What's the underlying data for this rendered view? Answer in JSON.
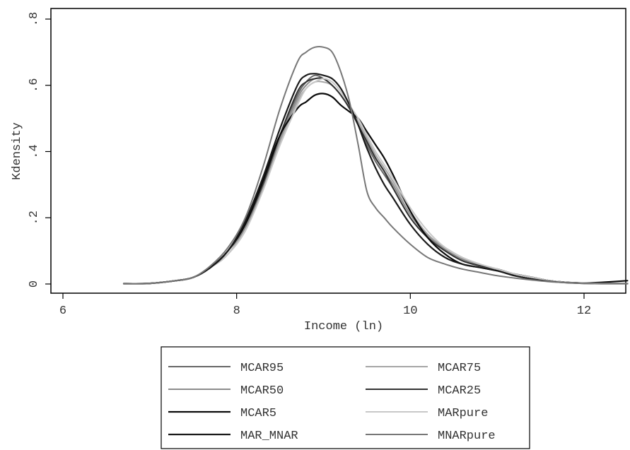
{
  "chart_data": {
    "type": "line",
    "xlabel": "Income (ln)",
    "ylabel": "Kdensity",
    "xlim": [
      6,
      12.5
    ],
    "ylim": [
      0,
      0.8
    ],
    "x_ticks": [
      6,
      8,
      10,
      12
    ],
    "x_tick_labels": [
      "6",
      "8",
      "10",
      "12"
    ],
    "y_ticks": [
      0,
      0.2,
      0.4,
      0.6,
      0.8
    ],
    "y_tick_labels": [
      "0",
      ".2",
      ".4",
      ".6",
      ".8"
    ],
    "grid": false,
    "legend_placement": "bottom",
    "x": [
      6.7,
      7.0,
      7.3,
      7.5,
      7.7,
      7.9,
      8.1,
      8.3,
      8.5,
      8.7,
      8.8,
      8.9,
      9.0,
      9.1,
      9.2,
      9.3,
      9.4,
      9.5,
      9.6,
      9.7,
      9.8,
      10.0,
      10.2,
      10.4,
      10.6,
      10.8,
      11.0,
      11.2,
      11.4,
      11.6,
      11.8,
      12.0,
      12.2,
      12.5
    ],
    "series": [
      {
        "name": "MCAR95",
        "color": "#666666",
        "width": 2,
        "values": [
          0.001,
          0.002,
          0.01,
          0.02,
          0.05,
          0.1,
          0.18,
          0.3,
          0.45,
          0.57,
          0.61,
          0.63,
          0.62,
          0.6,
          0.57,
          0.53,
          0.48,
          0.42,
          0.37,
          0.33,
          0.29,
          0.2,
          0.14,
          0.1,
          0.07,
          0.055,
          0.045,
          0.03,
          0.02,
          0.01,
          0.005,
          0.003,
          0.002,
          0.001
        ]
      },
      {
        "name": "MCAR75",
        "color": "#a6a6a6",
        "width": 2,
        "values": [
          0.001,
          0.002,
          0.01,
          0.02,
          0.05,
          0.09,
          0.17,
          0.29,
          0.43,
          0.55,
          0.59,
          0.61,
          0.61,
          0.6,
          0.57,
          0.53,
          0.49,
          0.44,
          0.39,
          0.35,
          0.31,
          0.22,
          0.15,
          0.11,
          0.08,
          0.06,
          0.045,
          0.03,
          0.02,
          0.01,
          0.005,
          0.003,
          0.002,
          0.001
        ]
      },
      {
        "name": "MCAR50",
        "color": "#8c8c8c",
        "width": 2,
        "values": [
          0.001,
          0.002,
          0.01,
          0.02,
          0.05,
          0.1,
          0.17,
          0.29,
          0.44,
          0.56,
          0.6,
          0.62,
          0.62,
          0.6,
          0.57,
          0.53,
          0.48,
          0.43,
          0.38,
          0.34,
          0.3,
          0.21,
          0.145,
          0.105,
          0.075,
          0.058,
          0.045,
          0.03,
          0.02,
          0.01,
          0.005,
          0.003,
          0.002,
          0.001
        ]
      },
      {
        "name": "MCAR25",
        "color": "#333333",
        "width": 2,
        "values": [
          0.001,
          0.002,
          0.01,
          0.02,
          0.05,
          0.1,
          0.18,
          0.3,
          0.45,
          0.58,
          0.61,
          0.62,
          0.62,
          0.6,
          0.57,
          0.53,
          0.48,
          0.43,
          0.38,
          0.34,
          0.29,
          0.2,
          0.14,
          0.1,
          0.07,
          0.055,
          0.045,
          0.03,
          0.02,
          0.01,
          0.005,
          0.003,
          0.002,
          0.001
        ]
      },
      {
        "name": "MCAR5",
        "color": "#0a0a0a",
        "width": 2.2,
        "values": [
          0.001,
          0.002,
          0.01,
          0.02,
          0.05,
          0.1,
          0.18,
          0.31,
          0.45,
          0.53,
          0.55,
          0.57,
          0.575,
          0.565,
          0.54,
          0.52,
          0.5,
          0.46,
          0.42,
          0.38,
          0.33,
          0.22,
          0.14,
          0.09,
          0.06,
          0.05,
          0.04,
          0.03,
          0.02,
          0.01,
          0.005,
          0.003,
          0.005,
          0.01
        ]
      },
      {
        "name": "MARpure",
        "color": "#c8c8c8",
        "width": 2,
        "values": [
          0.001,
          0.002,
          0.01,
          0.02,
          0.05,
          0.09,
          0.16,
          0.28,
          0.42,
          0.54,
          0.59,
          0.61,
          0.62,
          0.61,
          0.58,
          0.54,
          0.5,
          0.45,
          0.4,
          0.36,
          0.32,
          0.23,
          0.16,
          0.11,
          0.08,
          0.06,
          0.045,
          0.03,
          0.02,
          0.01,
          0.005,
          0.003,
          0.002,
          0.001
        ]
      },
      {
        "name": "MAR_MNAR",
        "color": "#1a1a1a",
        "width": 2.2,
        "values": [
          0.001,
          0.002,
          0.01,
          0.02,
          0.05,
          0.1,
          0.19,
          0.32,
          0.47,
          0.6,
          0.63,
          0.635,
          0.63,
          0.62,
          0.59,
          0.54,
          0.48,
          0.41,
          0.35,
          0.3,
          0.26,
          0.18,
          0.12,
          0.08,
          0.06,
          0.05,
          0.04,
          0.025,
          0.015,
          0.008,
          0.004,
          0.002,
          0.001,
          0.001
        ]
      },
      {
        "name": "MNARpure",
        "color": "#777777",
        "width": 2,
        "values": [
          0.001,
          0.002,
          0.01,
          0.02,
          0.055,
          0.11,
          0.2,
          0.35,
          0.53,
          0.67,
          0.7,
          0.715,
          0.715,
          0.7,
          0.64,
          0.55,
          0.42,
          0.28,
          0.23,
          0.2,
          0.17,
          0.12,
          0.08,
          0.06,
          0.045,
          0.035,
          0.025,
          0.018,
          0.012,
          0.007,
          0.004,
          0.002,
          0.001,
          0.001
        ]
      }
    ]
  }
}
